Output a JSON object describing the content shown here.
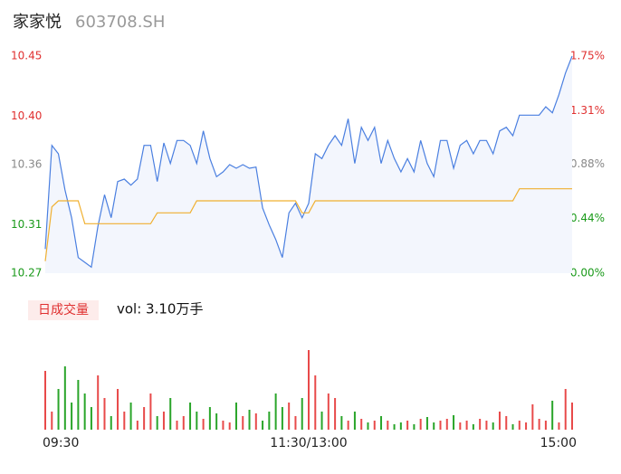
{
  "chart_data": {
    "type": "intraday",
    "title": "家家悦",
    "subtitle": "603708.SH",
    "volume_badge": "日成交量",
    "volume_text": "vol: 3.10万手",
    "xlim": [
      0,
      240
    ],
    "xticks": [
      {
        "value": 0,
        "label": "09:30"
      },
      {
        "value": 120,
        "label": "11:30/13:00"
      },
      {
        "value": 240,
        "label": "15:00"
      }
    ],
    "ylim": [
      10.27,
      10.45
    ],
    "yticks": [
      10.27,
      10.31,
      10.36,
      {
        "value": 10.4,
        "label": "10.40"
      },
      10.45
    ],
    "ytick_colors": [
      "#1a9a1a",
      "#1a9a1a",
      "#888888",
      "#e03030",
      "#e03030"
    ],
    "y2lim": [
      0,
      1.75
    ],
    "y2ticks": [
      {
        "value": 0,
        "label": "0.00%"
      },
      {
        "value": 0.44,
        "label": "0.44%"
      },
      {
        "value": 0.88,
        "label": "0.88%"
      },
      {
        "value": 1.31,
        "label": "1.31%"
      },
      {
        "value": 1.75,
        "label": "1.75%"
      }
    ],
    "x": [
      0,
      3,
      6,
      9,
      12,
      15,
      18,
      21,
      24,
      27,
      30,
      33,
      36,
      39,
      42,
      45,
      48,
      51,
      54,
      57,
      60,
      63,
      66,
      69,
      72,
      75,
      78,
      81,
      84,
      87,
      90,
      93,
      96,
      99,
      102,
      105,
      108,
      111,
      114,
      117,
      120,
      123,
      126,
      129,
      132,
      135,
      138,
      141,
      144,
      147,
      150,
      153,
      156,
      159,
      162,
      165,
      168,
      171,
      174,
      177,
      180,
      183,
      186,
      189,
      192,
      195,
      198,
      201,
      204,
      207,
      210,
      213,
      216,
      219,
      222,
      225,
      228,
      231,
      234,
      237,
      240
    ],
    "series": [
      {
        "color": "#4a7fe0",
        "values": [
          10.29,
          10.376,
          10.369,
          10.339,
          10.316,
          10.283,
          10.279,
          10.275,
          10.309,
          10.335,
          10.316,
          10.346,
          10.348,
          10.343,
          10.348,
          10.376,
          10.376,
          10.346,
          10.378,
          10.361,
          10.38,
          10.38,
          10.376,
          10.361,
          10.388,
          10.365,
          10.35,
          10.354,
          10.36,
          10.357,
          10.36,
          10.357,
          10.358,
          10.324,
          10.31,
          10.298,
          10.283,
          10.32,
          10.328,
          10.316,
          10.328,
          10.369,
          10.365,
          10.376,
          10.384,
          10.376,
          10.398,
          10.361,
          10.391,
          10.38,
          10.391,
          10.361,
          10.38,
          10.365,
          10.354,
          10.365,
          10.354,
          10.38,
          10.361,
          10.35,
          10.38,
          10.38,
          10.357,
          10.376,
          10.38,
          10.369,
          10.38,
          10.38,
          10.369,
          10.388,
          10.391,
          10.384,
          10.401,
          10.401,
          10.401,
          10.401,
          10.408,
          10.403,
          10.418,
          10.436,
          10.45
        ]
      },
      {
        "color": "#f0b030",
        "values": [
          10.28,
          10.325,
          10.33,
          10.33,
          10.33,
          10.33,
          10.311,
          10.311,
          10.311,
          10.311,
          10.311,
          10.311,
          10.311,
          10.311,
          10.311,
          10.311,
          10.311,
          10.32,
          10.32,
          10.32,
          10.32,
          10.32,
          10.32,
          10.33,
          10.33,
          10.33,
          10.33,
          10.33,
          10.33,
          10.33,
          10.33,
          10.33,
          10.33,
          10.33,
          10.33,
          10.33,
          10.33,
          10.33,
          10.33,
          10.32,
          10.32,
          10.33,
          10.33,
          10.33,
          10.33,
          10.33,
          10.33,
          10.33,
          10.33,
          10.33,
          10.33,
          10.33,
          10.33,
          10.33,
          10.33,
          10.33,
          10.33,
          10.33,
          10.33,
          10.33,
          10.33,
          10.33,
          10.33,
          10.33,
          10.33,
          10.33,
          10.33,
          10.33,
          10.33,
          10.33,
          10.33,
          10.33,
          10.34,
          10.34,
          10.34,
          10.34,
          10.34,
          10.34,
          10.34,
          10.34,
          10.34
        ]
      }
    ],
    "volume": [
      65,
      20,
      45,
      70,
      30,
      55,
      40,
      25,
      60,
      35,
      15,
      45,
      20,
      30,
      10,
      25,
      40,
      15,
      20,
      35,
      10,
      15,
      30,
      20,
      12,
      25,
      18,
      10,
      8,
      30,
      15,
      22,
      18,
      10,
      20,
      40,
      25,
      30,
      15,
      35,
      88,
      60,
      20,
      40,
      35,
      15,
      10,
      20,
      12,
      8,
      10,
      15,
      10,
      6,
      8,
      10,
      6,
      12,
      14,
      8,
      10,
      12,
      16,
      8,
      10,
      6,
      12,
      10,
      8,
      20,
      15,
      6,
      10,
      8,
      28,
      12,
      10,
      32,
      8,
      45,
      30
    ],
    "volume_ylim": [
      0,
      90
    ],
    "up_color": "#e84a4a",
    "down_color": "#2aa52a"
  }
}
